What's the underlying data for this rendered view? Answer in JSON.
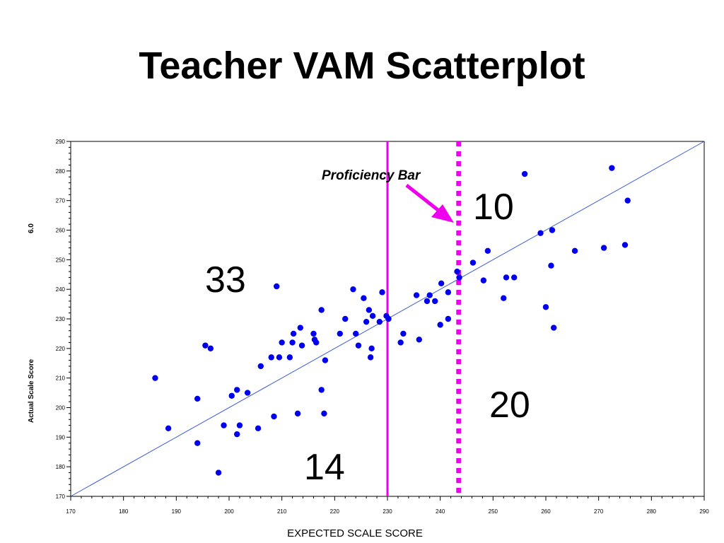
{
  "slide": {
    "title": "Teacher VAM Scatterplot"
  },
  "chart_data": {
    "type": "scatter",
    "title": "Teacher VAM Scatterplot",
    "xlabel": "EXPECTED SCALE SCORE",
    "ylabel": "Actual Scale Score",
    "ylabel_top": "6.0",
    "xlim": [
      170,
      290
    ],
    "ylim": [
      170,
      290
    ],
    "xticks": [
      170,
      180,
      190,
      200,
      210,
      220,
      230,
      240,
      250,
      260,
      270,
      280,
      290
    ],
    "yticks": [
      170,
      180,
      190,
      200,
      210,
      220,
      230,
      240,
      250,
      260,
      270,
      280,
      290
    ],
    "grid": false,
    "point_color": "#0000ee",
    "reference_line": {
      "label": "y = x",
      "from": [
        170,
        170
      ],
      "to": [
        290,
        290
      ],
      "color": "#3b5bdb"
    },
    "vertical_lines": [
      {
        "x": 230,
        "style": "solid",
        "color": "#ee00ee"
      },
      {
        "x": 243.5,
        "style": "dotted",
        "color": "#ee00ee",
        "label": "Proficiency Bar"
      }
    ],
    "region_counts": [
      {
        "text": "33",
        "x": 196,
        "y": 245
      },
      {
        "text": "10",
        "x": 249,
        "y": 275
      },
      {
        "text": "20",
        "x": 252,
        "y": 204
      },
      {
        "text": "14",
        "x": 214,
        "y": 180
      }
    ],
    "points": [
      [
        186,
        210
      ],
      [
        188.5,
        193
      ],
      [
        194,
        203
      ],
      [
        194,
        188
      ],
      [
        195.5,
        221
      ],
      [
        196.5,
        220
      ],
      [
        198,
        178
      ],
      [
        199,
        194
      ],
      [
        200.5,
        204
      ],
      [
        201.5,
        206
      ],
      [
        201.5,
        191
      ],
      [
        202,
        194
      ],
      [
        203.5,
        205
      ],
      [
        205.5,
        193
      ],
      [
        206,
        214
      ],
      [
        208,
        217
      ],
      [
        208.5,
        197
      ],
      [
        209,
        241
      ],
      [
        209.5,
        217
      ],
      [
        210,
        222
      ],
      [
        211.5,
        217
      ],
      [
        212,
        222
      ],
      [
        212.2,
        225
      ],
      [
        213,
        198
      ],
      [
        213.5,
        227
      ],
      [
        213.8,
        221
      ],
      [
        216,
        225
      ],
      [
        216.2,
        223
      ],
      [
        216.5,
        222
      ],
      [
        217.5,
        233
      ],
      [
        217.5,
        206
      ],
      [
        218,
        198
      ],
      [
        218.2,
        216
      ],
      [
        221,
        225
      ],
      [
        222,
        230
      ],
      [
        223.5,
        240
      ],
      [
        224,
        225
      ],
      [
        224.5,
        221
      ],
      [
        225.5,
        237
      ],
      [
        226,
        229
      ],
      [
        226.5,
        233
      ],
      [
        226.8,
        217
      ],
      [
        227,
        220
      ],
      [
        227.2,
        231
      ],
      [
        228.5,
        229
      ],
      [
        229,
        239
      ],
      [
        229.8,
        231
      ],
      [
        230.2,
        230
      ],
      [
        232.5,
        222
      ],
      [
        233,
        225
      ],
      [
        235.5,
        238
      ],
      [
        236,
        223
      ],
      [
        237.5,
        236
      ],
      [
        238,
        238
      ],
      [
        239,
        236
      ],
      [
        240,
        228
      ],
      [
        240.2,
        242
      ],
      [
        241.5,
        239
      ],
      [
        241.5,
        230
      ],
      [
        243.2,
        246
      ],
      [
        243.6,
        244
      ],
      [
        246.2,
        249
      ],
      [
        248.2,
        243
      ],
      [
        249,
        253
      ],
      [
        252,
        237
      ],
      [
        252.5,
        244
      ],
      [
        254,
        244
      ],
      [
        256,
        279
      ],
      [
        259,
        259
      ],
      [
        260,
        234
      ],
      [
        261,
        248
      ],
      [
        261.2,
        260
      ],
      [
        261.5,
        227
      ],
      [
        265.5,
        253
      ],
      [
        271,
        254
      ],
      [
        272.5,
        281
      ],
      [
        275,
        255
      ],
      [
        275.5,
        270
      ]
    ]
  }
}
